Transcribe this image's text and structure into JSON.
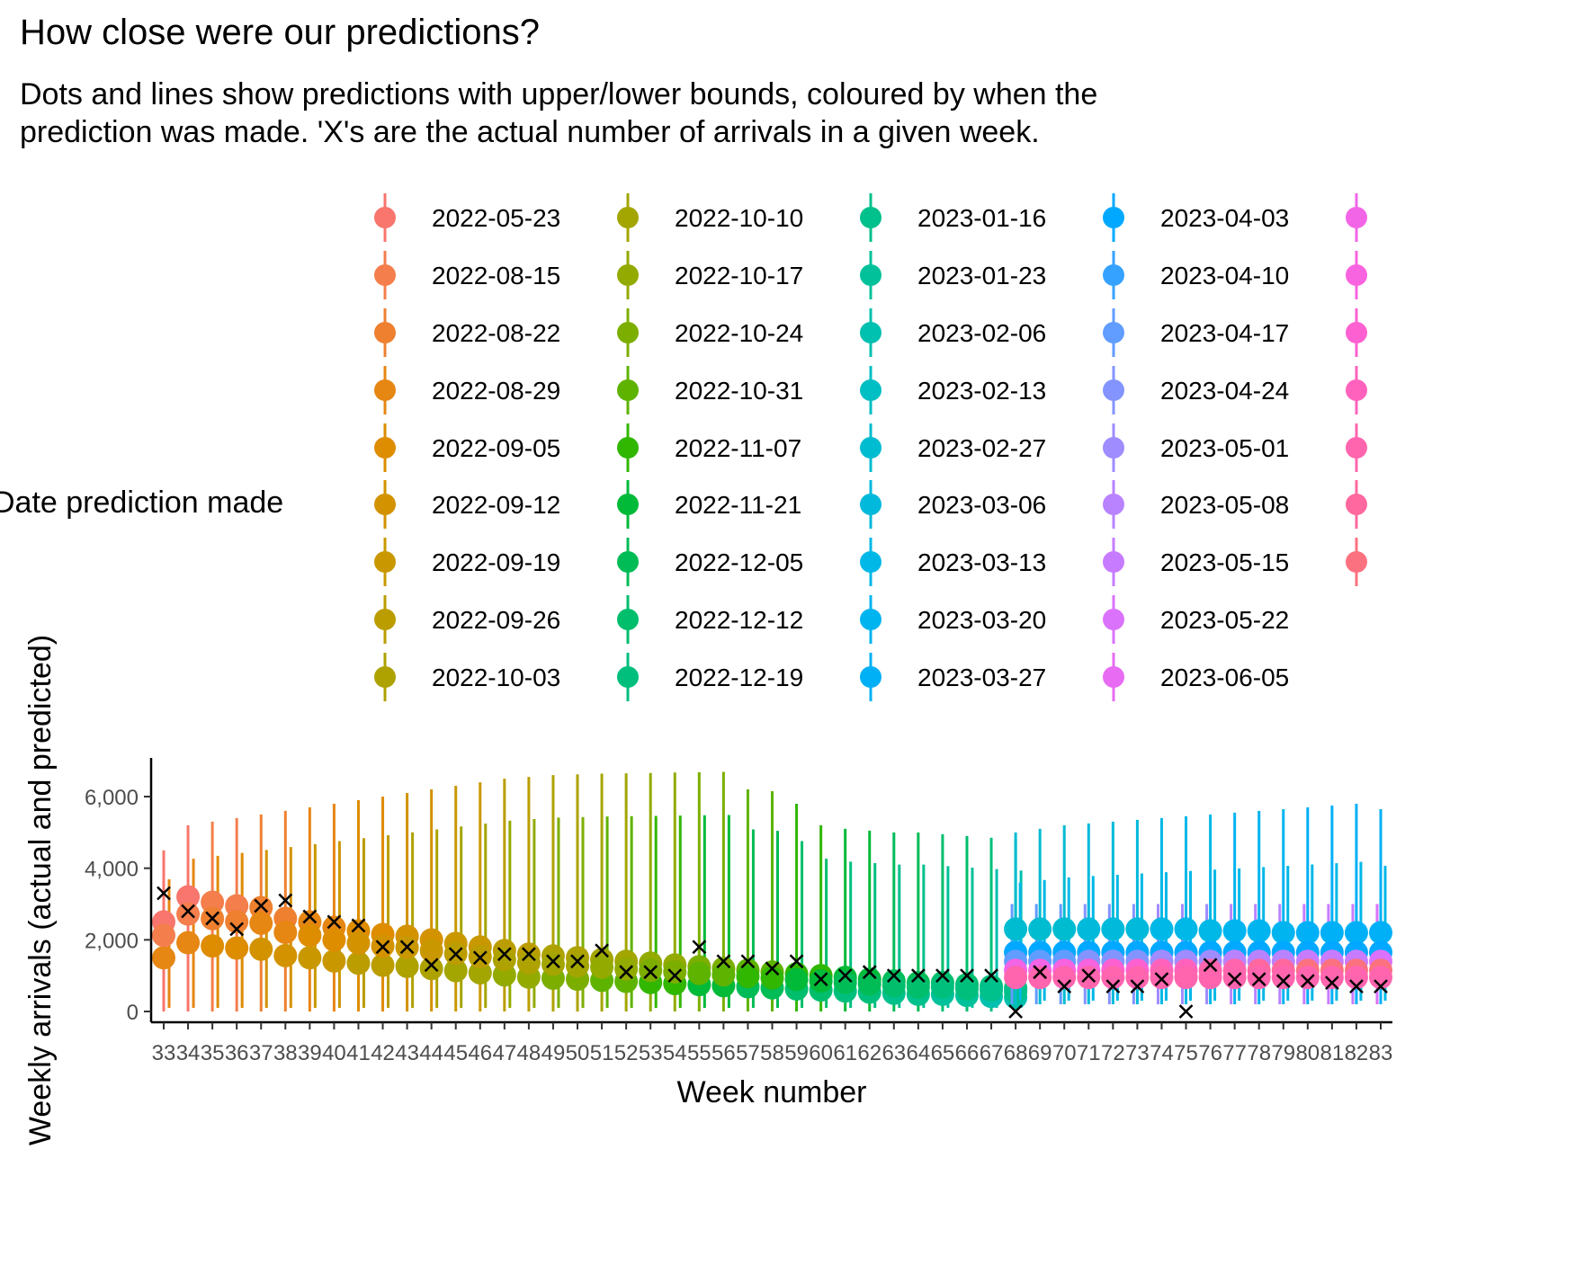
{
  "title": "How close were our predictions?",
  "subtitle_line1": "Dots and lines show predictions with upper/lower bounds, coloured by when the",
  "subtitle_line2": "prediction was made. 'X's are the actual number of arrivals in a given week.",
  "legend": {
    "title": "Date prediction made",
    "entries": [
      {
        "label": "2022-05-23",
        "color": "#F8766D"
      },
      {
        "label": "2022-08-15",
        "color": "#F47E4C"
      },
      {
        "label": "2022-08-22",
        "color": "#EE8030"
      },
      {
        "label": "2022-08-29",
        "color": "#E68613"
      },
      {
        "label": "2022-09-05",
        "color": "#DE8C00"
      },
      {
        "label": "2022-09-12",
        "color": "#D39200"
      },
      {
        "label": "2022-09-19",
        "color": "#C99800"
      },
      {
        "label": "2022-09-26",
        "color": "#BB9D00"
      },
      {
        "label": "2022-10-03",
        "color": "#AEA200"
      },
      {
        "label": "2022-10-10",
        "color": "#A3A500"
      },
      {
        "label": "2022-10-17",
        "color": "#93AA00"
      },
      {
        "label": "2022-10-24",
        "color": "#7CAE00"
      },
      {
        "label": "2022-10-31",
        "color": "#5EB300"
      },
      {
        "label": "2022-11-07",
        "color": "#31B700"
      },
      {
        "label": "2022-11-21",
        "color": "#00BA38"
      },
      {
        "label": "2022-12-05",
        "color": "#00BC56"
      },
      {
        "label": "2022-12-12",
        "color": "#00BE6C"
      },
      {
        "label": "2022-12-19",
        "color": "#00BF7D"
      },
      {
        "label": "2023-01-16",
        "color": "#00C08B"
      },
      {
        "label": "2023-01-23",
        "color": "#00C19A"
      },
      {
        "label": "2023-02-06",
        "color": "#00C0AF"
      },
      {
        "label": "2023-02-13",
        "color": "#00BFC4"
      },
      {
        "label": "2023-02-27",
        "color": "#00BCD0"
      },
      {
        "label": "2023-03-06",
        "color": "#00B9DB"
      },
      {
        "label": "2023-03-13",
        "color": "#00B8E7"
      },
      {
        "label": "2023-03-20",
        "color": "#00B4F0"
      },
      {
        "label": "2023-03-27",
        "color": "#00B0F6"
      },
      {
        "label": "2023-04-03",
        "color": "#00A9FF"
      },
      {
        "label": "2023-04-10",
        "color": "#35A2FF"
      },
      {
        "label": "2023-04-17",
        "color": "#619CFF"
      },
      {
        "label": "2023-04-24",
        "color": "#8494FF"
      },
      {
        "label": "2023-05-01",
        "color": "#9F8CFF"
      },
      {
        "label": "2023-05-08",
        "color": "#B983FF"
      },
      {
        "label": "2023-05-15",
        "color": "#C77CFF"
      },
      {
        "label": "2023-05-22",
        "color": "#DB72FB"
      },
      {
        "label": "2023-06-05",
        "color": "#E76BF3"
      },
      {
        "label": "",
        "color": "#F265E7"
      },
      {
        "label": "",
        "color": "#F863DF"
      },
      {
        "label": "",
        "color": "#FD61D1"
      },
      {
        "label": "",
        "color": "#FF62BC"
      },
      {
        "label": "",
        "color": "#FF65AE"
      },
      {
        "label": "",
        "color": "#FF689F"
      },
      {
        "label": "",
        "color": "#FC717F"
      }
    ]
  },
  "chart_data": {
    "type": "scatter",
    "xlabel": "Week number",
    "ylabel": "Weekly arrivals (actual and predicted)",
    "xlim": [
      33,
      83
    ],
    "ylim": [
      0,
      6000
    ],
    "yticks": [
      0,
      2000,
      4000,
      6000
    ],
    "ytick_labels": [
      "0",
      "2,000",
      "4,000",
      "6,000"
    ],
    "xticks": [
      33,
      34,
      35,
      36,
      37,
      38,
      39,
      40,
      41,
      42,
      43,
      44,
      45,
      46,
      47,
      48,
      49,
      50,
      51,
      52,
      53,
      54,
      55,
      56,
      57,
      58,
      59,
      60,
      61,
      62,
      63,
      64,
      65,
      66,
      67,
      68,
      69,
      70,
      71,
      72,
      73,
      74,
      75,
      76,
      77,
      78,
      79,
      80,
      81,
      82,
      83
    ],
    "actual": {
      "marker": "x",
      "x": [
        33,
        34,
        35,
        36,
        37,
        38,
        39,
        40,
        41,
        42,
        43,
        44,
        45,
        46,
        47,
        48,
        49,
        50,
        51,
        52,
        53,
        54,
        55,
        56,
        57,
        58,
        59,
        60,
        61,
        62,
        63,
        64,
        65,
        66,
        67,
        68,
        69,
        70,
        71,
        72,
        73,
        74,
        75,
        76,
        77,
        78,
        79,
        80,
        81,
        82,
        83
      ],
      "y": [
        3300,
        2800,
        2600,
        2300,
        2950,
        3100,
        2650,
        2500,
        2400,
        1800,
        1800,
        1300,
        1600,
        1500,
        1600,
        1600,
        1400,
        1400,
        1700,
        1100,
        1100,
        1000,
        1800,
        1400,
        1400,
        1200,
        1400,
        900,
        1000,
        1100,
        1000,
        1000,
        1000,
        1000,
        1000,
        0,
        1100,
        700,
        1000,
        700,
        700,
        900,
        0,
        1300,
        900,
        900,
        850,
        850,
        800,
        700,
        700
      ]
    },
    "predictions": {
      "description_key": "per week, the central estimate and upper bound of each prediction run, coloured by the date the prediction was made",
      "early_central": [
        2500,
        3200,
        3050,
        2950,
        2900,
        2600,
        2500,
        2350,
        2250,
        2150,
        2100,
        2000,
        1900,
        1800,
        1700,
        1600,
        1550,
        1500,
        1450,
        1400,
        1350,
        1300,
        1250,
        1200,
        1150,
        1100,
        1050,
        1000,
        950,
        900,
        850,
        800,
        800,
        750,
        700,
        650
      ],
      "early_upper": [
        4500,
        5200,
        5300,
        5400,
        5500,
        5600,
        5700,
        5800,
        5900,
        6000,
        6100,
        6200,
        6300,
        6400,
        6500,
        6550,
        6600,
        6620,
        6640,
        6650,
        6660,
        6670,
        6680,
        6690,
        6200,
        6150,
        5800,
        5200,
        5100,
        5050,
        5000,
        5000,
        4950,
        4900,
        4850,
        4800
      ],
      "late_central": [
        2300,
        2300,
        2300,
        2300,
        2300,
        2300,
        2300,
        2300,
        2250,
        2250,
        2250,
        2200,
        2200,
        2200,
        2200,
        2200
      ],
      "late_upper": [
        5000,
        5100,
        5200,
        5250,
        5300,
        5350,
        5400,
        5450,
        5500,
        5550,
        5600,
        5650,
        5700,
        5750,
        5800,
        5650
      ]
    }
  }
}
